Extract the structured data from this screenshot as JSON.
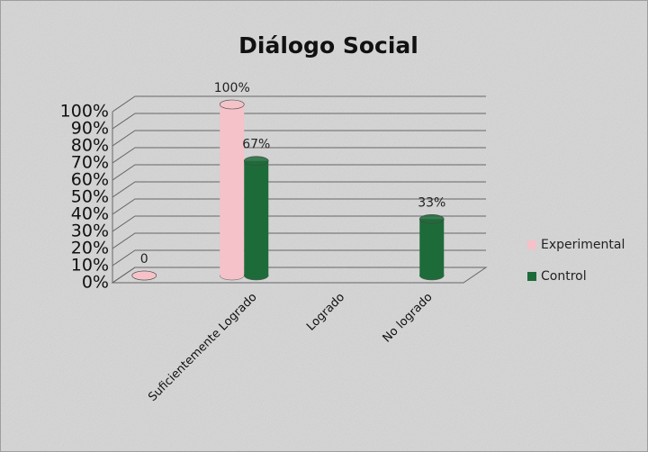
{
  "chart_data": {
    "type": "bar3d",
    "title": "Diálogo Social",
    "categories": [
      null,
      "Suficientemente Logrado",
      "Logrado",
      "No logrado"
    ],
    "series": [
      {
        "name": "Experimental",
        "color": "#f4c2c8",
        "values": [
          0,
          100,
          null,
          null
        ],
        "value_labels": [
          "0",
          "100%",
          null,
          null
        ]
      },
      {
        "name": "Control",
        "color": "#1e6b3a",
        "values": [
          null,
          67,
          null,
          33
        ],
        "value_labels": [
          null,
          "67%",
          null,
          "33%"
        ]
      }
    ],
    "ylim": [
      0,
      100
    ],
    "yticks": [
      {
        "value": 0,
        "label": "0%"
      },
      {
        "value": 10,
        "label": "10%"
      },
      {
        "value": 20,
        "label": "20%"
      },
      {
        "value": 30,
        "label": "30%"
      },
      {
        "value": 40,
        "label": "40%"
      },
      {
        "value": 50,
        "label": "50%"
      },
      {
        "value": 60,
        "label": "60%"
      },
      {
        "value": 70,
        "label": "70%"
      },
      {
        "value": 80,
        "label": "80%"
      },
      {
        "value": 90,
        "label": "90%"
      },
      {
        "value": 100,
        "label": "100%"
      }
    ],
    "grid": true,
    "legend": "right"
  }
}
